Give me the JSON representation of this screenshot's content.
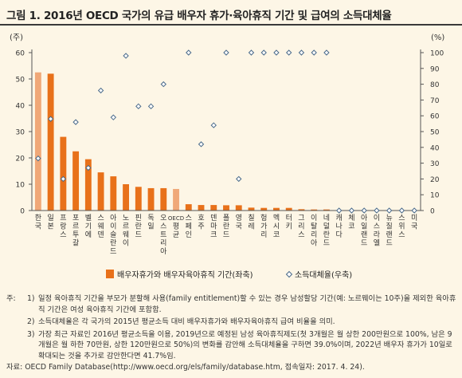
{
  "title": "그림 1. 2016년 OECD 국가의 유급 배우자 휴가·육아휴직 기간 및 급여의 소득대체율",
  "chart_data": {
    "type": "bar",
    "left_axis_unit": "(주)",
    "right_axis_unit": "(%)",
    "ylim_left": [
      0,
      60
    ],
    "ylim_right": [
      0,
      100
    ],
    "yticks_left": [
      "0",
      "10",
      "20",
      "30",
      "40",
      "50",
      "60"
    ],
    "yticks_right": [
      "0",
      "10",
      "20",
      "30",
      "40",
      "50",
      "60",
      "70",
      "80",
      "90",
      "100"
    ],
    "categories": [
      "한국",
      "일본",
      "프랑스",
      "포르투갈",
      "벨기에",
      "스웨덴",
      "아이슬란드",
      "노르웨이",
      "핀란드",
      "독일",
      "오스트리아",
      "OECD평균",
      "스페인",
      "호주",
      "덴마크",
      "폴란드",
      "영국",
      "칠레",
      "헝가리",
      "멕시코",
      "터키",
      "그리스",
      "이탈리아",
      "네덜란드",
      "캐나다",
      "체코",
      "아일랜드",
      "이스라엘",
      "뉴질랜드",
      "스위스",
      "미국"
    ],
    "bar_colors": [
      "#f0a878",
      "#e8711a",
      "#e8711a",
      "#e8711a",
      "#e8711a",
      "#e8711a",
      "#e8711a",
      "#e8711a",
      "#e8711a",
      "#e8711a",
      "#e8711a",
      "#f0a878",
      "#e8711a",
      "#e8711a",
      "#e8711a",
      "#e8711a",
      "#e8711a",
      "#e8711a",
      "#e8711a",
      "#e8711a",
      "#e8711a",
      "#e8711a",
      "#e8711a",
      "#e8711a",
      "#e8711a",
      "#e8711a",
      "#e8711a",
      "#e8711a",
      "#e8711a",
      "#e8711a",
      "#e8711a"
    ],
    "series": [
      {
        "name": "배우자휴가와 배우자육아휴직 기간(좌축)",
        "axis": "left",
        "kind": "bar",
        "color": "#e8711a",
        "values": [
          52.5,
          52,
          28,
          22.5,
          19.5,
          14.5,
          13,
          10,
          9,
          8.5,
          8.5,
          8.2,
          2.4,
          2.1,
          2.1,
          2,
          2,
          1.1,
          1,
          1,
          1,
          0.5,
          0.4,
          0.4,
          0,
          0,
          0,
          0,
          0,
          0,
          0
        ]
      },
      {
        "name": "소득대체율(우축)",
        "axis": "right",
        "kind": "marker",
        "color": "#4a6a8a",
        "values": [
          33,
          58,
          20,
          56,
          27,
          76,
          59,
          98,
          66,
          66,
          80,
          null,
          100,
          42,
          54,
          100,
          20,
          100,
          100,
          100,
          100,
          100,
          100,
          100,
          0,
          0,
          0,
          0,
          0,
          0,
          0
        ]
      }
    ]
  },
  "notes": {
    "prefix": "주:",
    "items": [
      {
        "num": "1)",
        "text": "일정 육아휴직 기간을 부모가 분할해 사용(family entitlement)할 수 있는 경우 남성할당 기간(예: 노르웨이는 10주)을 제외한 육아휴직 기간은 여성 육아휴직 기간에 포함함."
      },
      {
        "num": "2)",
        "text": "소득대체율은 각 국가의 2015년 평균소득 대비 배우자휴가와 배우자육아휴직 급여 비율을 의미."
      },
      {
        "num": "3)",
        "text": "가장 최근 자료인 2016년 평균소득을 이용, 2019년으로 예정된 남성 육아휴직제도(첫 3개월은 월 상한 200만원으로 100%, 남은 9개월은 월 하한 70만원, 상한 120만원으로 50%)의 변화를 감안해 소득대체율을 구하면 39.0%이며, 2022년 배우자 휴가가 10일로 확대되는 것을 추가로 감안한다면 41.7%임."
      }
    ],
    "source": "자료: OECD Family Database(http://www.oecd.org/els/family/database.htm, 접속일자: 2017. 4. 24)."
  }
}
